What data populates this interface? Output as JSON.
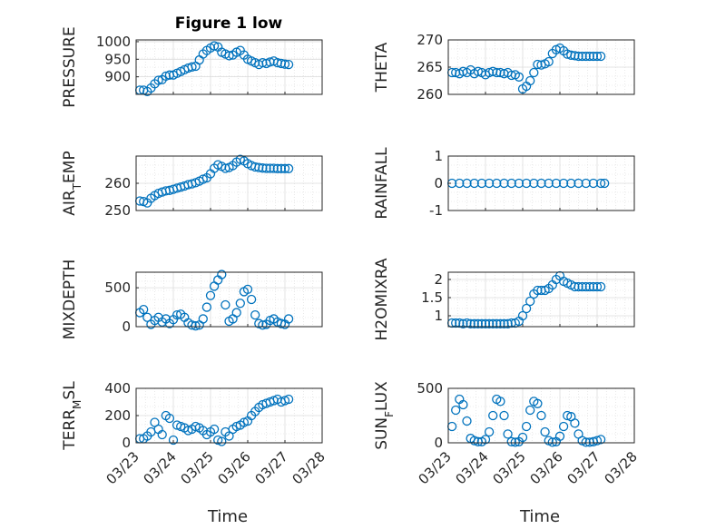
{
  "figure": {
    "title": "Figure 1 low",
    "xlabel": "Time",
    "x_tick_labels": [
      "03/23",
      "03/24",
      "03/25",
      "03/26",
      "03/27",
      "03/28"
    ],
    "marker_color": "#0072BD"
  },
  "chart_data": [
    {
      "type": "scatter",
      "ylabel": "PRESSURE",
      "yticks": [
        "900",
        "950",
        "1000"
      ],
      "ylim": [
        850,
        1005
      ],
      "x": [
        0.1,
        0.2,
        0.3,
        0.4,
        0.5,
        0.6,
        0.7,
        0.8,
        0.9,
        1.0,
        1.1,
        1.2,
        1.3,
        1.4,
        1.5,
        1.6,
        1.7,
        1.8,
        1.9,
        2.0,
        2.1,
        2.2,
        2.3,
        2.4,
        2.5,
        2.6,
        2.7,
        2.8,
        2.9,
        3.0,
        3.1,
        3.2,
        3.3,
        3.4,
        3.5,
        3.6,
        3.7,
        3.8,
        3.9,
        4.0,
        4.1
      ],
      "values": [
        862,
        862,
        858,
        868,
        880,
        890,
        892,
        902,
        905,
        905,
        910,
        915,
        920,
        925,
        928,
        930,
        948,
        965,
        975,
        982,
        988,
        985,
        970,
        965,
        960,
        962,
        970,
        975,
        962,
        950,
        945,
        940,
        935,
        940,
        938,
        942,
        945,
        940,
        938,
        936,
        935
      ]
    },
    {
      "type": "scatter",
      "ylabel": "THETA",
      "yticks": [
        "260",
        "265",
        "270"
      ],
      "ylim": [
        260,
        270
      ],
      "x": [
        0.1,
        0.2,
        0.3,
        0.4,
        0.5,
        0.6,
        0.7,
        0.8,
        0.9,
        1.0,
        1.1,
        1.2,
        1.3,
        1.4,
        1.5,
        1.6,
        1.7,
        1.8,
        1.9,
        2.0,
        2.1,
        2.2,
        2.3,
        2.4,
        2.5,
        2.6,
        2.7,
        2.8,
        2.9,
        3.0,
        3.1,
        3.2,
        3.3,
        3.4,
        3.5,
        3.6,
        3.7,
        3.8,
        3.9,
        4.0,
        4.1
      ],
      "values": [
        264,
        264,
        263.8,
        264.2,
        264,
        264.5,
        263.8,
        264.2,
        264,
        263.6,
        264,
        264.2,
        264,
        264,
        263.8,
        264,
        263.5,
        263.6,
        263.2,
        261,
        261.5,
        262.5,
        264,
        265.5,
        265.4,
        265.6,
        266,
        267.5,
        268.2,
        268.5,
        268,
        267.4,
        267.2,
        267.1,
        267,
        267,
        267,
        267,
        267,
        267,
        267
      ]
    },
    {
      "type": "scatter",
      "ylabel": "AIR_TEMP",
      "yticks": [
        "250",
        "260"
      ],
      "ylim": [
        250,
        270
      ],
      "x": [
        0.1,
        0.2,
        0.3,
        0.4,
        0.5,
        0.6,
        0.7,
        0.8,
        0.9,
        1.0,
        1.1,
        1.2,
        1.3,
        1.4,
        1.5,
        1.6,
        1.7,
        1.8,
        1.9,
        2.0,
        2.1,
        2.2,
        2.3,
        2.4,
        2.5,
        2.6,
        2.7,
        2.8,
        2.9,
        3.0,
        3.1,
        3.2,
        3.3,
        3.4,
        3.5,
        3.6,
        3.7,
        3.8,
        3.9,
        4.0,
        4.1
      ],
      "values": [
        253.5,
        253.3,
        252.8,
        254.5,
        255.5,
        256.3,
        256.8,
        257.2,
        257.4,
        257.8,
        258.2,
        258.6,
        259,
        259.5,
        259.8,
        260.2,
        260.8,
        261.5,
        262,
        263.5,
        265.5,
        266.8,
        266.2,
        265.5,
        265.8,
        266.5,
        267.8,
        268.8,
        268.2,
        267.2,
        266.5,
        266,
        265.8,
        265.6,
        265.5,
        265.5,
        265.5,
        265.4,
        265.4,
        265.4,
        265.4
      ]
    },
    {
      "type": "scatter",
      "ylabel": "RAINFALL",
      "yticks": [
        "-1",
        "0",
        "1"
      ],
      "ylim": [
        -1,
        1
      ],
      "x": [
        0.1,
        0.3,
        0.5,
        0.7,
        0.9,
        1.1,
        1.3,
        1.5,
        1.7,
        1.9,
        2.1,
        2.3,
        2.5,
        2.7,
        2.9,
        3.1,
        3.3,
        3.5,
        3.7,
        3.9,
        4.1,
        4.2
      ],
      "values": [
        0,
        0,
        0,
        0,
        0,
        0,
        0,
        0,
        0,
        0,
        0,
        0,
        0,
        0,
        0,
        0,
        0,
        0,
        0,
        0,
        0,
        0
      ]
    },
    {
      "type": "scatter",
      "ylabel": "MIXDEPTH",
      "yticks": [
        "0",
        "500"
      ],
      "ylim": [
        0,
        700
      ],
      "x": [
        0.1,
        0.2,
        0.3,
        0.4,
        0.5,
        0.6,
        0.7,
        0.8,
        0.9,
        1.0,
        1.1,
        1.2,
        1.3,
        1.4,
        1.5,
        1.6,
        1.7,
        1.8,
        1.9,
        2.0,
        2.1,
        2.2,
        2.3,
        2.4,
        2.5,
        2.6,
        2.7,
        2.8,
        2.9,
        3.0,
        3.1,
        3.2,
        3.3,
        3.4,
        3.5,
        3.6,
        3.7,
        3.8,
        3.9,
        4.0,
        4.1
      ],
      "values": [
        180,
        220,
        120,
        30,
        80,
        120,
        60,
        100,
        40,
        90,
        150,
        160,
        120,
        50,
        20,
        10,
        20,
        100,
        250,
        400,
        520,
        600,
        670,
        280,
        70,
        100,
        180,
        300,
        450,
        480,
        350,
        150,
        40,
        20,
        30,
        80,
        100,
        60,
        40,
        30,
        100
      ]
    },
    {
      "type": "scatter",
      "ylabel": "H2OMIXRA",
      "yticks": [
        "1",
        "1.5",
        "2"
      ],
      "ylim": [
        0.7,
        2.2
      ],
      "x": [
        0.1,
        0.2,
        0.3,
        0.4,
        0.5,
        0.6,
        0.7,
        0.8,
        0.9,
        1.0,
        1.1,
        1.2,
        1.3,
        1.4,
        1.5,
        1.6,
        1.7,
        1.8,
        1.9,
        2.0,
        2.1,
        2.2,
        2.3,
        2.4,
        2.5,
        2.6,
        2.7,
        2.8,
        2.9,
        3.0,
        3.1,
        3.2,
        3.3,
        3.4,
        3.5,
        3.6,
        3.7,
        3.8,
        3.9,
        4.0,
        4.1
      ],
      "values": [
        0.8,
        0.8,
        0.8,
        0.78,
        0.8,
        0.78,
        0.78,
        0.78,
        0.78,
        0.78,
        0.78,
        0.78,
        0.78,
        0.78,
        0.78,
        0.78,
        0.8,
        0.8,
        0.85,
        1.0,
        1.2,
        1.4,
        1.6,
        1.7,
        1.7,
        1.7,
        1.75,
        1.85,
        2.0,
        2.1,
        1.95,
        1.9,
        1.85,
        1.8,
        1.8,
        1.8,
        1.8,
        1.8,
        1.8,
        1.8,
        1.8
      ]
    },
    {
      "type": "scatter",
      "ylabel": "TERR_MSL",
      "yticks": [
        "0",
        "200",
        "400"
      ],
      "ylim": [
        0,
        400
      ],
      "x": [
        0.1,
        0.2,
        0.3,
        0.4,
        0.5,
        0.6,
        0.7,
        0.8,
        0.9,
        1.0,
        1.1,
        1.2,
        1.3,
        1.4,
        1.5,
        1.6,
        1.7,
        1.8,
        1.9,
        2.0,
        2.1,
        2.2,
        2.3,
        2.4,
        2.5,
        2.6,
        2.7,
        2.8,
        2.9,
        3.0,
        3.1,
        3.2,
        3.3,
        3.4,
        3.5,
        3.6,
        3.7,
        3.8,
        3.9,
        4.0,
        4.1
      ],
      "values": [
        30,
        30,
        50,
        80,
        150,
        100,
        60,
        200,
        180,
        20,
        130,
        120,
        110,
        90,
        100,
        120,
        110,
        90,
        60,
        80,
        100,
        20,
        10,
        80,
        50,
        100,
        120,
        130,
        150,
        160,
        200,
        230,
        260,
        280,
        290,
        300,
        310,
        320,
        300,
        310,
        320
      ]
    },
    {
      "type": "scatter",
      "ylabel": "SUN_FLUX",
      "yticks": [
        "0",
        "500"
      ],
      "ylim": [
        0,
        500
      ],
      "x": [
        0.1,
        0.2,
        0.3,
        0.4,
        0.5,
        0.6,
        0.7,
        0.8,
        0.9,
        1.0,
        1.1,
        1.2,
        1.3,
        1.4,
        1.5,
        1.6,
        1.7,
        1.8,
        1.9,
        2.0,
        2.1,
        2.2,
        2.3,
        2.4,
        2.5,
        2.6,
        2.7,
        2.8,
        2.9,
        3.0,
        3.1,
        3.2,
        3.3,
        3.4,
        3.5,
        3.6,
        3.7,
        3.8,
        3.9,
        4.0,
        4.1
      ],
      "values": [
        150,
        300,
        400,
        350,
        200,
        40,
        20,
        10,
        10,
        30,
        100,
        250,
        400,
        380,
        250,
        80,
        10,
        5,
        10,
        50,
        150,
        300,
        380,
        360,
        250,
        100,
        20,
        5,
        10,
        60,
        150,
        250,
        240,
        180,
        80,
        20,
        5,
        5,
        10,
        20,
        30
      ]
    }
  ]
}
